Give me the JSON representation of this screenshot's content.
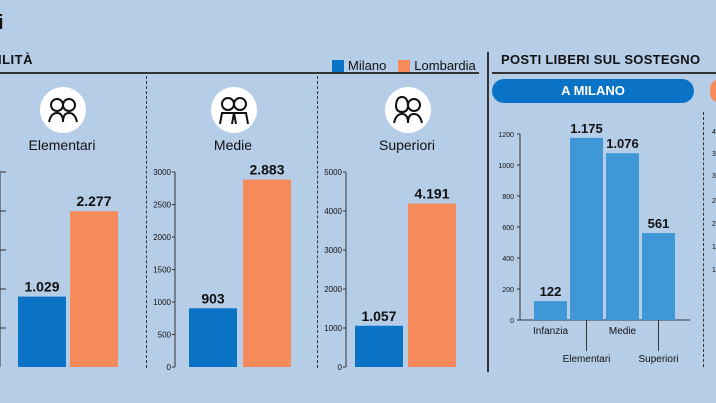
{
  "header": {
    "title_fragment": "i",
    "left_section": "ILITÀ",
    "right_section": "POSTI LIBERI SUL SOSTEGNO",
    "right_pill": "A MILANO"
  },
  "legend": [
    {
      "name": "Milano",
      "color": "#0b73c5"
    },
    {
      "name": "Lombardia",
      "color": "#f58b5b"
    }
  ],
  "colors": {
    "milano": "#0b73c5",
    "lombardia": "#f58b5b",
    "right_bar": "#3f97d8",
    "background": "#b6cde8"
  },
  "chart_data": [
    {
      "type": "bar",
      "title": "Elementari",
      "icon": "children-icon",
      "categories": [
        "Milano",
        "Lombardia"
      ],
      "values": [
        1029,
        2277
      ],
      "value_labels": [
        "1.029",
        "2.277"
      ],
      "yticks": [],
      "ylim": [
        0,
        2850
      ]
    },
    {
      "type": "bar",
      "title": "Medie",
      "icon": "teens-icon",
      "categories": [
        "Milano",
        "Lombardia"
      ],
      "values": [
        903,
        2883
      ],
      "value_labels": [
        "903",
        "2.883"
      ],
      "yticks": [
        0,
        500,
        1000,
        1500,
        2000,
        2500,
        3000
      ],
      "ylim": [
        0,
        3000
      ]
    },
    {
      "type": "bar",
      "title": "Superiori",
      "icon": "students-icon",
      "categories": [
        "Milano",
        "Lombardia"
      ],
      "values": [
        1057,
        4191
      ],
      "value_labels": [
        "1.057",
        "4.191"
      ],
      "yticks": [
        0,
        1000,
        2000,
        3000,
        4000,
        5000
      ],
      "ylim": [
        0,
        5000
      ]
    },
    {
      "type": "bar",
      "title": "A MILANO",
      "categories": [
        "Infanzia",
        "Elementari",
        "Medie",
        "Superiori"
      ],
      "values": [
        122,
        1175,
        1076,
        561
      ],
      "value_labels": [
        "122",
        "1.175",
        "1.076",
        "561"
      ],
      "yticks": [
        0,
        200,
        400,
        600,
        800,
        1000,
        1200
      ],
      "ylim": [
        0,
        1200
      ]
    }
  ],
  "partial_axis_ticks": [
    "4",
    "3",
    "3",
    "2",
    "2",
    "1",
    "1"
  ]
}
